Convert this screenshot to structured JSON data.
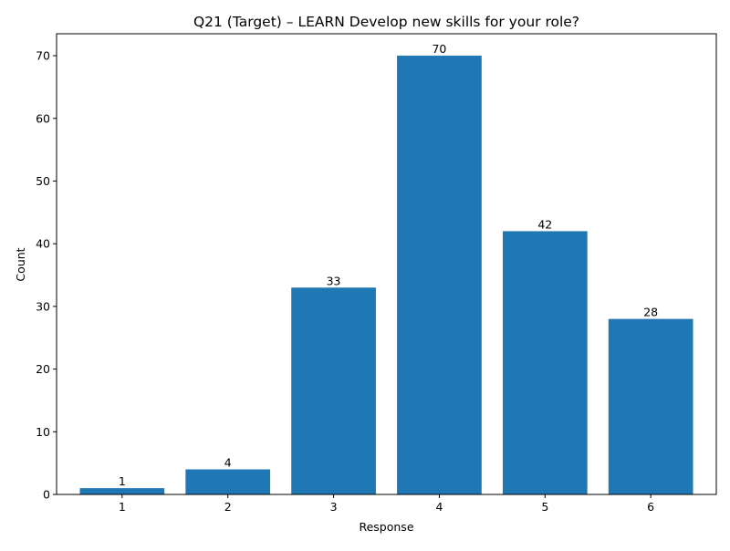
{
  "chart_data": {
    "type": "bar",
    "title": "Q21 (Target) – LEARN Develop new skills for your role?",
    "xlabel": "Response",
    "ylabel": "Count",
    "categories": [
      "1",
      "2",
      "3",
      "4",
      "5",
      "6"
    ],
    "values": [
      1,
      4,
      33,
      70,
      42,
      28
    ],
    "ylim": [
      0,
      73.5
    ],
    "yticks": [
      0,
      10,
      20,
      30,
      40,
      50,
      60,
      70
    ],
    "bar_color": "#1f77b4",
    "grid": false,
    "legend": "none",
    "data_labels": true
  }
}
